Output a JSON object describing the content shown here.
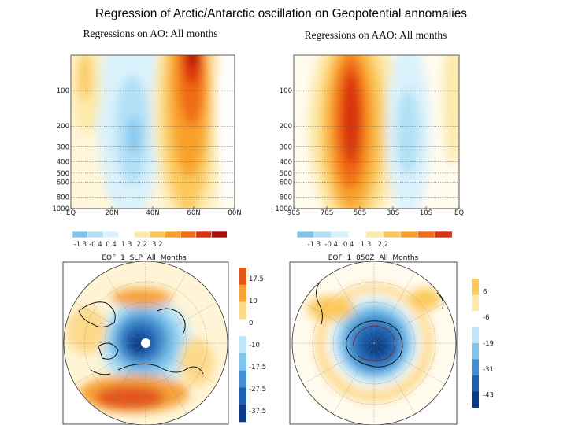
{
  "title": "Regression of Arctic/Antarctic oscillation on Geopotential annomalies",
  "chart_data": [
    {
      "type": "heatmap",
      "title": "Regressions on AO: All months",
      "x_ticks": [
        "EQ",
        "20N",
        "40N",
        "60N",
        "80N"
      ],
      "y_ticks": [
        "100",
        "200",
        "300",
        "400",
        "500",
        "600",
        "800",
        "1000"
      ],
      "y_values": [
        100,
        200,
        300,
        400,
        500,
        600,
        800,
        1000
      ],
      "colorbar": {
        "labels": [
          "-1.3",
          "-0.4",
          "0.4",
          "1.3",
          "2.2",
          "3.2"
        ],
        "colors": [
          "#80c5ee",
          "#b3e0f6",
          "#daf2fb",
          "#fefefe",
          "#fde9a9",
          "#fcc95c",
          "#f9a02c",
          "#f06b14",
          "#d8330b",
          "#a81006"
        ]
      }
    },
    {
      "type": "heatmap",
      "title": "Regressions on AAO: All months",
      "x_ticks": [
        "90S",
        "70S",
        "50S",
        "30S",
        "10S",
        "EQ"
      ],
      "y_ticks": [
        "100",
        "200",
        "300",
        "400",
        "500",
        "600",
        "800",
        "1000"
      ],
      "y_values": [
        100,
        200,
        300,
        400,
        500,
        600,
        800,
        1000
      ],
      "colorbar": {
        "labels": [
          "-1.3",
          "-0.4",
          "0.4",
          "1.3",
          "2.2"
        ],
        "colors": [
          "#80c5ee",
          "#b3e0f6",
          "#daf2fb",
          "#fefefe",
          "#fde9a9",
          "#fcc95c",
          "#f9a02c",
          "#f06b14",
          "#d8330b"
        ]
      }
    },
    {
      "type": "heatmap",
      "title": "EOF 1 SLP All Months",
      "colorbar": {
        "labels": [
          "17.5",
          "10",
          "0",
          "-10",
          "-17.5",
          "-27.5",
          "-37.5"
        ],
        "colors": [
          "#e3561a",
          "#f6a33a",
          "#fdd98a",
          "#ffffff",
          "#bde6f8",
          "#7ec4ec",
          "#3f8fd2",
          "#1d5fb0",
          "#0d3a84"
        ]
      }
    },
    {
      "type": "heatmap",
      "title": "EOF 1 850Z All Months",
      "colorbar": {
        "labels": [
          "6",
          "-6",
          "-19",
          "-31",
          "-43"
        ],
        "colors": [
          "#fcc95c",
          "#fde9a9",
          "#ffffff",
          "#bde6f8",
          "#7ec4ec",
          "#3f8fd2",
          "#1d5fb0",
          "#0d3a84"
        ]
      }
    }
  ]
}
